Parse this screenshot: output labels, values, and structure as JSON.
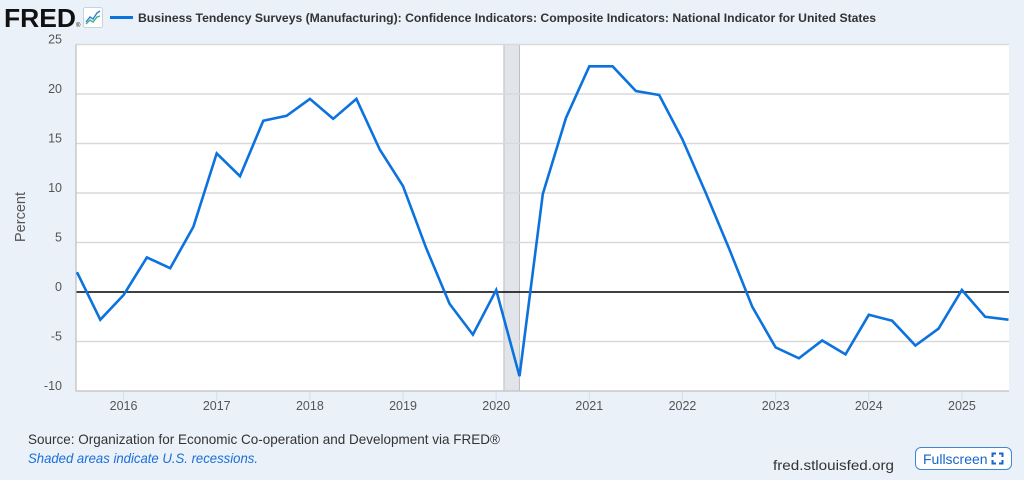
{
  "header": {
    "logo_text": "FRED",
    "logo_mark": "®",
    "logo_icon": "fred-chart-icon",
    "series_title": "Business Tendency Surveys (Manufacturing): Confidence Indicators: Composite Indicators: National Indicator for United States"
  },
  "chart_data": {
    "type": "line",
    "title": "Business Tendency Surveys (Manufacturing): Confidence Indicators: Composite Indicators: National Indicator for United States",
    "xlabel": "",
    "ylabel": "Percent",
    "xlim": [
      "2015-07-01",
      "2025-07-01"
    ],
    "ylim": [
      -10,
      25
    ],
    "yticks": [
      25,
      20,
      15,
      10,
      5,
      0,
      -5,
      -10
    ],
    "xticks": [
      "2016",
      "2017",
      "2018",
      "2019",
      "2020",
      "2021",
      "2022",
      "2023",
      "2024",
      "2025"
    ],
    "grid": true,
    "reference_line": 0,
    "legend": "top-left",
    "recessions": [
      {
        "start": "2020-02-01",
        "end": "2020-04-01"
      }
    ],
    "series": [
      {
        "name": "Business Tendency Surveys (Manufacturing): Confidence Indicators: Composite Indicators: National Indicator for United States",
        "frequency": "quarterly",
        "x": [
          "2015-07-01",
          "2015-10-01",
          "2016-01-01",
          "2016-04-01",
          "2016-07-01",
          "2016-10-01",
          "2017-01-01",
          "2017-04-01",
          "2017-07-01",
          "2017-10-01",
          "2018-01-01",
          "2018-04-01",
          "2018-07-01",
          "2018-10-01",
          "2019-01-01",
          "2019-04-01",
          "2019-07-01",
          "2019-10-01",
          "2020-01-01",
          "2020-04-01",
          "2020-07-01",
          "2020-10-01",
          "2021-01-01",
          "2021-04-01",
          "2021-07-01",
          "2021-10-01",
          "2022-01-01",
          "2022-04-01",
          "2022-07-01",
          "2022-10-01",
          "2023-01-01",
          "2023-04-01",
          "2023-07-01",
          "2023-10-01",
          "2024-01-01",
          "2024-04-01",
          "2024-07-01",
          "2024-10-01",
          "2025-01-01",
          "2025-04-01",
          "2025-07-01"
        ],
        "values": [
          2.0,
          -2.8,
          -0.3,
          3.5,
          2.4,
          6.6,
          14.0,
          11.7,
          17.3,
          17.8,
          19.5,
          17.5,
          19.5,
          14.4,
          10.7,
          4.4,
          -1.2,
          -4.3,
          0.2,
          -8.5,
          9.9,
          17.6,
          22.8,
          22.8,
          20.3,
          19.9,
          15.4,
          10.0,
          4.4,
          -1.5,
          -5.6,
          -6.7,
          -4.9,
          -6.3,
          -2.3,
          -2.9,
          -5.4,
          -3.7,
          0.2,
          -2.5,
          -2.8
        ]
      }
    ]
  },
  "footer": {
    "source": "Source: Organization for Economic Co-operation and Development via FRED®",
    "recession_note": "Shaded areas indicate U.S. recessions.",
    "site": "fred.stlouisfed.org",
    "fullscreen_label": "Fullscreen",
    "fullscreen_icon": "fullscreen-icon"
  },
  "colors": {
    "series": "#0b72de",
    "recession_shade": "#e1e5ea",
    "zero_line": "#000000",
    "page_background": "#eaf1f9",
    "link": "#1a6ed8"
  }
}
